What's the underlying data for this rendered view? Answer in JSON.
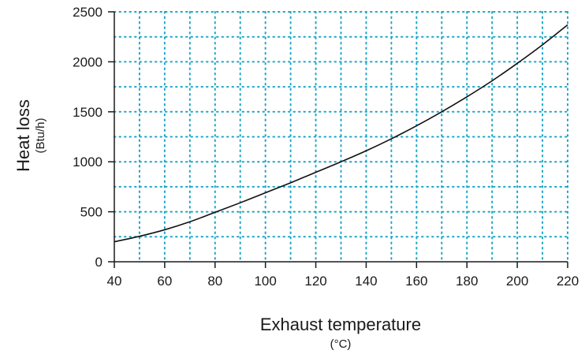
{
  "chart_data": {
    "type": "line",
    "xlabel": "Exhaust temperature",
    "xunit": "(°C)",
    "ylabel": "Heat loss",
    "yunit": "(Btu/h)",
    "xlim": [
      40,
      220
    ],
    "ylim": [
      0,
      2500
    ],
    "x_ticks": [
      40,
      60,
      80,
      100,
      120,
      140,
      160,
      180,
      200,
      220
    ],
    "y_ticks": [
      0,
      500,
      1000,
      1500,
      2000,
      2500
    ],
    "x_tick_labels": [
      "40",
      "60",
      "80",
      "100",
      "120",
      "140",
      "160",
      "180",
      "200",
      "220"
    ],
    "y_tick_labels": [
      "0",
      "500",
      "1000",
      "1500",
      "2000",
      "2500"
    ],
    "grid": true,
    "grid_style": "dotted",
    "grid_color": "#1aa6c8",
    "line_color": "#111111",
    "series": [
      {
        "x": [
          40,
          50,
          60,
          70,
          80,
          90,
          100,
          110,
          120,
          130,
          140,
          150,
          160,
          170,
          180,
          190,
          200,
          210,
          220
        ],
        "values": [
          200,
          255,
          320,
          400,
          495,
          590,
          690,
          790,
          895,
          1000,
          1110,
          1230,
          1360,
          1500,
          1650,
          1810,
          1985,
          2170,
          2370
        ]
      }
    ]
  }
}
